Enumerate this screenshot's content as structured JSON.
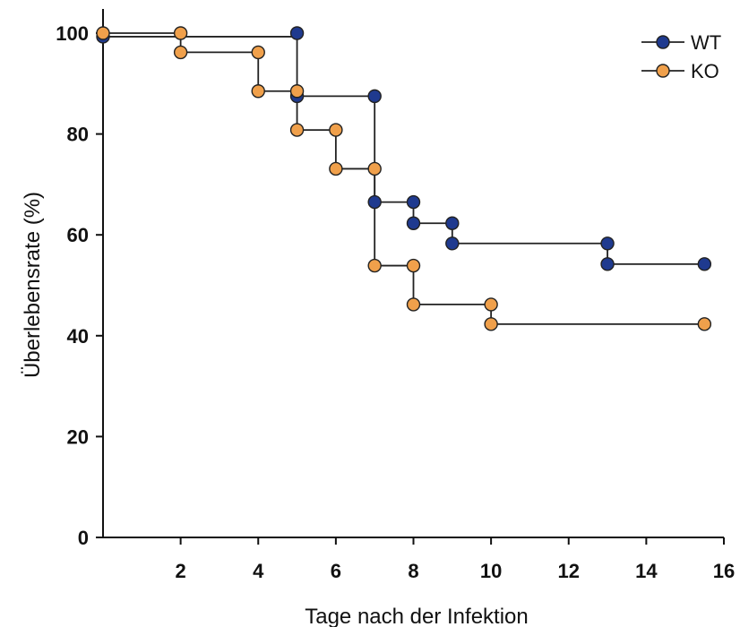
{
  "chart_data": {
    "type": "line",
    "step": true,
    "title": "",
    "xlabel": "Tage nach der Infektion",
    "ylabel": "Überlebensrate (%)",
    "xlim": [
      0,
      16
    ],
    "ylim": [
      0,
      100
    ],
    "xticks": [
      2,
      4,
      6,
      8,
      10,
      12,
      14,
      16
    ],
    "yticks": [
      0,
      20,
      40,
      60,
      80,
      100
    ],
    "grid": false,
    "legend_position": "top-right",
    "series": [
      {
        "name": "WT",
        "color": "#1f3a8f",
        "x": [
          0,
          5,
          5,
          7,
          7,
          8,
          8,
          9,
          9,
          13,
          13,
          15.5
        ],
        "y": [
          99.3,
          100,
          87.5,
          87.5,
          66.5,
          66.5,
          62.3,
          62.3,
          58.3,
          58.3,
          54.2,
          54.2
        ]
      },
      {
        "name": "KO",
        "color": "#f0a04b",
        "x": [
          0,
          2,
          2,
          4,
          4,
          5,
          5,
          6,
          6,
          7,
          7,
          8,
          8,
          10,
          10,
          15.5
        ],
        "y": [
          100,
          100,
          96.2,
          96.2,
          88.5,
          88.5,
          80.8,
          80.8,
          73.1,
          73.1,
          53.9,
          53.9,
          46.2,
          46.2,
          42.3,
          42.3
        ]
      }
    ]
  }
}
